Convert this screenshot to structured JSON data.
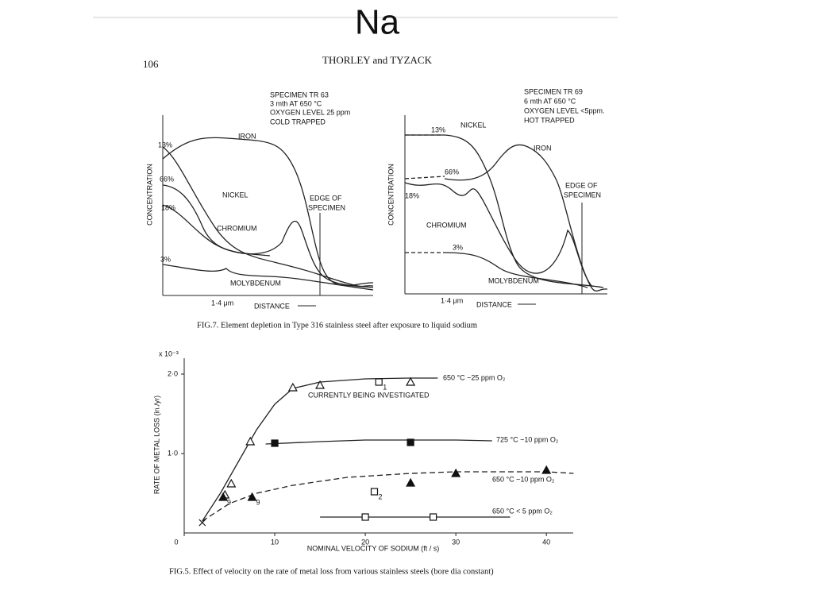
{
  "slide_title": "Na",
  "page_number": "106",
  "running_head": "THORLEY and TYZACK",
  "fig7": {
    "caption": "FIG.7.   Element depletion in Type 316 stainless steel after exposure to liquid sodium",
    "panels": [
      {
        "specimen": [
          "SPECIMEN TR 63",
          "3 mth AT 650 °C",
          "OXYGEN LEVEL 25 ppm",
          "COLD TRAPPED"
        ],
        "labels": [
          "13%",
          "66%",
          "18%",
          "3%",
          "IRON",
          "NICKEL",
          "CHROMIUM",
          "MOLYBDENUM",
          "EDGE OF",
          "SPECIMEN"
        ],
        "ylabel": "CONCENTRATION",
        "xlabel": "DISTANCE",
        "scale": "1·4 μm"
      },
      {
        "specimen": [
          "SPECIMEN TR 69",
          "6 mth AT 650 °C",
          "OXYGEN LEVEL <5ppm.",
          "HOT TRAPPED"
        ],
        "labels": [
          "13%",
          "66%",
          "18%",
          "3%",
          "IRON",
          "NICKEL",
          "CHROMIUM",
          "MOLYBDENUM",
          "EDGE OF",
          "SPECIMEN"
        ],
        "ylabel": "CONCENTRATION",
        "xlabel": "DISTANCE",
        "scale": "1·4 μm"
      }
    ]
  },
  "chart_data": {
    "type": "line",
    "caption": "FIG.5.   Effect of velocity on the rate of metal loss from various stainless steels (bore dia constant)",
    "xlabel": "NOMINAL VELOCITY OF SODIUM  (ft / s)",
    "ylabel": "RATE OF METAL LOSS  (in./yr)",
    "ymultiplier": "x 10⁻³",
    "annotation": "CURRENTLY BEING INVESTIGATED",
    "xlim": [
      0,
      42
    ],
    "ylim": [
      0,
      2.2
    ],
    "xticks": [
      0,
      10,
      20,
      30,
      40
    ],
    "yticks": [
      {
        "value": 1,
        "label": "1·0"
      },
      {
        "value": 2,
        "label": "2·0"
      }
    ],
    "curves": [
      {
        "name": "650 °C ~25 ppm O₂",
        "dashed": false,
        "x": [
          2,
          4,
          6,
          8,
          10,
          12,
          15,
          20,
          25,
          28
        ],
        "values": [
          0.15,
          0.5,
          0.9,
          1.3,
          1.62,
          1.82,
          1.9,
          1.94,
          1.95,
          1.95
        ]
      },
      {
        "name": "725 °C ~10 ppm O₂",
        "dashed": false,
        "x": [
          9,
          15,
          20,
          25,
          30,
          34
        ],
        "values": [
          1.12,
          1.15,
          1.17,
          1.17,
          1.17,
          1.16
        ]
      },
      {
        "name": "650 °C ~10 ppm O₂",
        "dashed": true,
        "x": [
          2,
          5,
          8,
          12,
          18,
          25,
          30,
          35,
          40,
          43
        ],
        "values": [
          0.15,
          0.37,
          0.5,
          0.6,
          0.7,
          0.75,
          0.77,
          0.77,
          0.77,
          0.75
        ]
      },
      {
        "name": "650 °C < 5 ppm O₂",
        "dashed": false,
        "x": [
          15,
          20,
          25,
          30,
          36
        ],
        "values": [
          0.2,
          0.2,
          0.2,
          0.2,
          0.2
        ]
      }
    ],
    "points": [
      {
        "marker": "open-triangle",
        "x": [
          4.5,
          5.2,
          7.3,
          12,
          15,
          25
        ],
        "values": [
          0.48,
          0.62,
          1.15,
          1.83,
          1.86,
          1.9
        ],
        "labels": [
          null,
          null,
          null,
          null,
          null,
          null
        ]
      },
      {
        "marker": "filled-square",
        "x": [
          10,
          25
        ],
        "values": [
          1.13,
          1.14
        ],
        "labels": [
          null,
          null
        ]
      },
      {
        "marker": "filled-triangle",
        "x": [
          4.3,
          7.5,
          25,
          30,
          40
        ],
        "values": [
          0.45,
          0.45,
          0.63,
          0.75,
          0.79
        ],
        "labels": [
          "9",
          "9",
          null,
          null,
          null
        ]
      },
      {
        "marker": "open-square",
        "x": [
          21.5,
          21,
          20,
          27.5
        ],
        "values": [
          1.9,
          0.52,
          0.2,
          0.2
        ],
        "labels": [
          "1",
          "2",
          null,
          null
        ]
      },
      {
        "marker": "cross",
        "x": [
          2
        ],
        "values": [
          0.13
        ],
        "labels": [
          null
        ]
      }
    ]
  }
}
